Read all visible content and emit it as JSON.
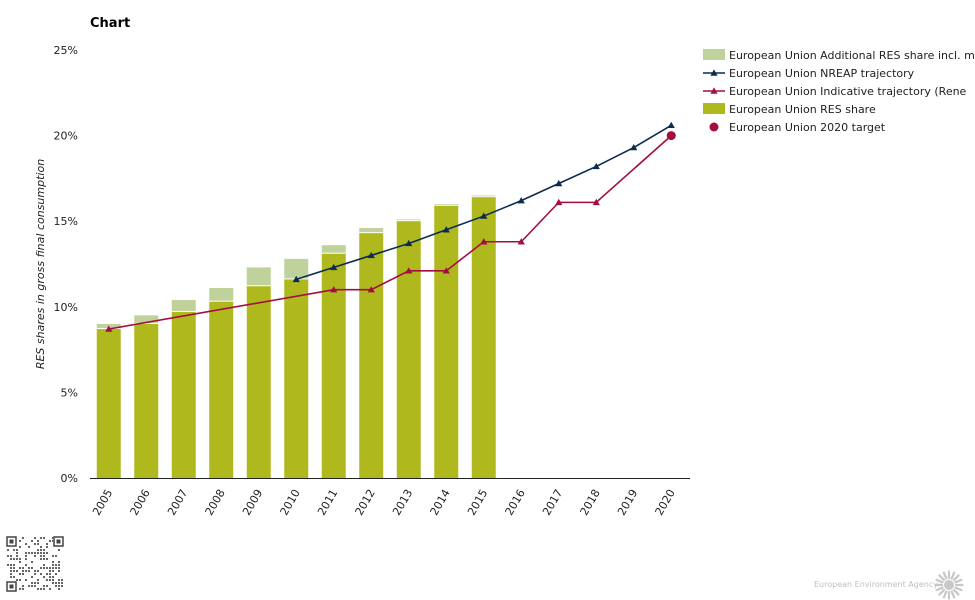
{
  "page": {
    "title": "Chart",
    "footer_credit": "European Environment Agency"
  },
  "colors": {
    "res_share": "#afb91e",
    "additional_res": "#c0d29c",
    "nreap": "#0c2c4f",
    "indicative": "#a50d42",
    "target": "#a50d42",
    "axis": "#222222"
  },
  "chart_data": {
    "type": "bar",
    "title": "Chart",
    "xlabel": "",
    "ylabel": "RES shares in gross final consumption",
    "ylim": [
      0,
      25
    ],
    "yticks": [
      0,
      5,
      10,
      15,
      20,
      25
    ],
    "ytick_labels": [
      "0%",
      "5%",
      "10%",
      "15%",
      "20%",
      "25%"
    ],
    "categories": [
      "2005",
      "2006",
      "2007",
      "2008",
      "2009",
      "2010",
      "2011",
      "2012",
      "2013",
      "2014",
      "2015",
      "2016",
      "2017",
      "2018",
      "2019",
      "2020"
    ],
    "series": [
      {
        "name": "European Union RES share",
        "kind": "bar",
        "values": [
          8.7,
          9.0,
          9.7,
          10.3,
          11.2,
          11.6,
          13.1,
          14.3,
          15.0,
          15.9,
          16.4,
          null,
          null,
          null,
          null,
          null
        ]
      },
      {
        "name": "European Union Additional RES share incl. m",
        "kind": "bar-stack",
        "values": [
          0.3,
          0.5,
          0.7,
          0.8,
          1.1,
          1.2,
          0.5,
          0.3,
          0.1,
          0.1,
          0.1,
          null,
          null,
          null,
          null,
          null
        ]
      },
      {
        "name": "European Union NREAP trajectory",
        "kind": "line",
        "values": [
          null,
          null,
          null,
          null,
          null,
          11.6,
          12.3,
          13.0,
          13.7,
          14.5,
          15.3,
          16.2,
          17.2,
          18.2,
          19.3,
          20.6
        ]
      },
      {
        "name": "European Union Indicative trajectory (Rene",
        "kind": "line",
        "values": [
          8.7,
          null,
          null,
          null,
          null,
          null,
          11.0,
          11.0,
          12.1,
          12.1,
          13.8,
          13.8,
          16.1,
          16.1,
          null,
          20.0
        ]
      },
      {
        "name": "European Union 2020 target",
        "kind": "point",
        "values": [
          null,
          null,
          null,
          null,
          null,
          null,
          null,
          null,
          null,
          null,
          null,
          null,
          null,
          null,
          null,
          20.0
        ]
      }
    ],
    "legend": {
      "position": "top-right",
      "entries": [
        {
          "label": "European Union Additional RES share incl. m",
          "symbol": "rect",
          "color_key": "additional_res"
        },
        {
          "label": "European Union NREAP trajectory",
          "symbol": "line-triangle",
          "color_key": "nreap"
        },
        {
          "label": "European Union Indicative trajectory (Rene",
          "symbol": "line-triangle",
          "color_key": "indicative"
        },
        {
          "label": "European Union RES share",
          "symbol": "rect",
          "color_key": "res_share"
        },
        {
          "label": "European Union 2020 target",
          "symbol": "circle",
          "color_key": "target"
        }
      ]
    }
  }
}
